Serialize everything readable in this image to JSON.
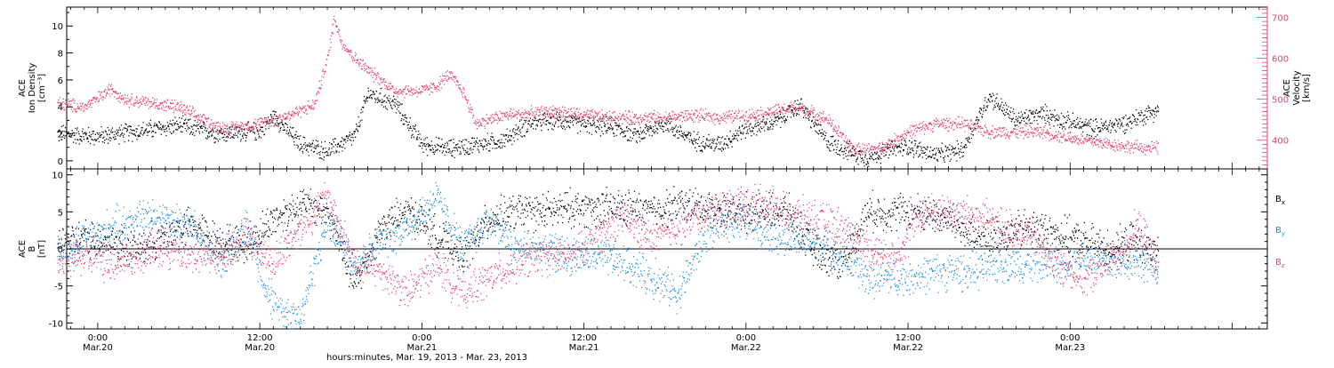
{
  "chart_data": [
    {
      "type": "scatter",
      "panel": "plasma",
      "ylabel_left": [
        "ACE",
        "Ion Density",
        "[cm⁻³]"
      ],
      "ylabel_right": [
        "ACE",
        "Velocity",
        "[km/s]"
      ],
      "ylim_left": [
        -0.6,
        11.4
      ],
      "ylim_right": [
        330,
        725
      ],
      "yticks_left": [
        "0",
        "2",
        "4",
        "6",
        "8",
        "10"
      ],
      "yticks_left_values": [
        0,
        2,
        4,
        6,
        8,
        10
      ],
      "yticks_right": [
        "400",
        "500",
        "600",
        "700"
      ],
      "yticks_right_values": [
        400,
        500,
        600,
        700
      ],
      "colors": {
        "density": "#000000",
        "velocity": "#e8416b"
      },
      "series": [
        {
          "axis": "left",
          "color": "#000000",
          "x": [
            -3,
            0,
            3,
            6,
            9,
            12,
            13,
            15,
            17,
            19,
            20,
            22,
            24,
            26,
            28,
            30,
            32,
            34,
            36,
            38,
            40,
            42,
            44,
            46,
            48,
            50,
            52,
            54,
            56,
            57,
            58,
            60,
            62,
            64,
            66,
            68,
            70,
            72,
            74,
            76,
            78.5
          ],
          "values": [
            2.0,
            1.8,
            2.2,
            2.6,
            2.0,
            2.2,
            3.3,
            1.2,
            0.7,
            1.8,
            5.0,
            4.2,
            1.2,
            0.9,
            1.2,
            1.5,
            2.8,
            3.0,
            2.7,
            2.5,
            1.9,
            2.8,
            1.5,
            1.2,
            2.4,
            2.8,
            4.1,
            1.4,
            0.5,
            0.2,
            0.6,
            1.1,
            0.4,
            0.8,
            4.8,
            3.0,
            3.5,
            2.8,
            2.4,
            2.8,
            3.8
          ],
          "spread": 0.6
        },
        {
          "axis": "right",
          "color": "#e8416b",
          "x": [
            -3,
            -1,
            1,
            2,
            4,
            6,
            9,
            10,
            12,
            14,
            16,
            17,
            17.5,
            18,
            19,
            20,
            22,
            24,
            25,
            26,
            27,
            28,
            29,
            30,
            32,
            34,
            36,
            38,
            40,
            42,
            44,
            46,
            48,
            50,
            52,
            54,
            56,
            58,
            60,
            62,
            64,
            66,
            68,
            70,
            72,
            74,
            76,
            78.5
          ],
          "values": [
            490,
            480,
            525,
            500,
            490,
            480,
            430,
            430,
            440,
            460,
            485,
            600,
            700,
            640,
            600,
            570,
            520,
            520,
            530,
            560,
            520,
            440,
            450,
            460,
            465,
            470,
            460,
            455,
            455,
            455,
            460,
            455,
            460,
            470,
            480,
            450,
            375,
            380,
            420,
            440,
            440,
            420,
            420,
            420,
            405,
            395,
            385,
            380
          ],
          "spread": 14
        }
      ]
    },
    {
      "type": "scatter",
      "panel": "magnetic-field",
      "ylabel_left": [
        "ACE",
        "B",
        "[nT]"
      ],
      "ylim": [
        -10.8,
        10.8
      ],
      "yticks": [
        "-10",
        "-5",
        "0",
        "5",
        "10"
      ],
      "yticks_values": [
        -10,
        -5,
        0,
        5,
        10
      ],
      "zero_line": true,
      "colors": {
        "Bx": "#000000",
        "By": "#1a8ee6",
        "Bz": "#e8416b"
      },
      "series": [
        {
          "name": "B",
          "name_sub": "x",
          "color": "#000000",
          "x": [
            -3,
            -1,
            1,
            3,
            5,
            7,
            9,
            11,
            13,
            15,
            17,
            19,
            21,
            23,
            25,
            27,
            29,
            31,
            33,
            35,
            37,
            39,
            41,
            43,
            45,
            47,
            49,
            51,
            53,
            55,
            57,
            59,
            61,
            63,
            65,
            67,
            69,
            71,
            73,
            75,
            77,
            78.5
          ],
          "values": [
            0.5,
            1.5,
            1.0,
            0.0,
            2.0,
            3.0,
            1.0,
            0.5,
            4.0,
            6.0,
            5.0,
            -5.0,
            3.0,
            5.0,
            2.0,
            -1.0,
            4.0,
            5.0,
            5.0,
            5.5,
            5.5,
            5.5,
            5.0,
            6.0,
            5.5,
            5.0,
            5.0,
            5.0,
            0.0,
            -2.0,
            5.0,
            5.0,
            5.0,
            4.0,
            1.0,
            2.0,
            3.0,
            2.0,
            1.0,
            0.0,
            1.0,
            -1.0
          ],
          "spread": 2.2
        },
        {
          "name": "B",
          "name_sub": "y",
          "color": "#1a8ee6",
          "x": [
            -3,
            -1,
            1,
            3,
            5,
            7,
            9,
            11,
            13,
            15,
            17,
            19,
            21,
            23,
            25,
            27,
            29,
            31,
            33,
            35,
            37,
            39,
            41,
            43,
            45,
            47,
            49,
            51,
            53,
            55,
            57,
            59,
            61,
            63,
            65,
            67,
            69,
            71,
            73,
            75,
            77,
            78.5
          ],
          "values": [
            -1.0,
            1.0,
            3.0,
            4.0,
            4.5,
            3.0,
            -2.0,
            3.0,
            -8.0,
            -9.0,
            4.0,
            -2.0,
            1.0,
            3.0,
            7.0,
            0.0,
            4.0,
            0.0,
            0.0,
            -1.0,
            -1.0,
            -2.0,
            -4.0,
            -6.0,
            2.0,
            4.0,
            3.0,
            1.0,
            1.0,
            -1.0,
            -4.0,
            -4.0,
            -3.5,
            -3.0,
            -3.0,
            -2.0,
            -2.0,
            -2.0,
            -1.0,
            -2.0,
            -1.5,
            -3.0
          ],
          "spread": 2.2
        },
        {
          "name": "B",
          "name_sub": "z",
          "color": "#e8416b",
          "x": [
            -3,
            -1,
            1,
            3,
            5,
            7,
            9,
            11,
            13,
            15,
            17,
            19,
            21,
            23,
            25,
            27,
            29,
            31,
            33,
            35,
            37,
            39,
            41,
            43,
            45,
            47,
            49,
            51,
            53,
            55,
            57,
            59,
            61,
            63,
            65,
            67,
            69,
            71,
            73,
            75,
            77,
            78.5
          ],
          "values": [
            -2.0,
            -1.0,
            -2.0,
            -1.0,
            0.0,
            -1.0,
            -1.0,
            2.0,
            -2.0,
            3.0,
            7.0,
            -2.0,
            -3.0,
            -6.0,
            -2.0,
            -6.0,
            -4.0,
            -2.0,
            -1.0,
            -1.0,
            2.0,
            4.0,
            1.0,
            3.0,
            5.0,
            6.0,
            6.0,
            5.0,
            4.0,
            3.0,
            0.0,
            -1.0,
            5.0,
            5.0,
            4.5,
            3.0,
            2.0,
            -2.0,
            -4.0,
            -2.0,
            3.0,
            -2.0
          ],
          "spread": 2.2
        }
      ]
    }
  ],
  "x_axis": {
    "xlabel": "hours:minutes, Mar. 19, 2013 - Mar. 23, 2013",
    "xlim_hours": [
      -2.3,
      86.6
    ],
    "ticks": [
      {
        "hours": 0,
        "time": "0:00",
        "date": "Mar.20"
      },
      {
        "hours": 12,
        "time": "12:00",
        "date": "Mar.20"
      },
      {
        "hours": 24,
        "time": "0:00",
        "date": "Mar.21"
      },
      {
        "hours": 36,
        "time": "12:00",
        "date": "Mar.21"
      },
      {
        "hours": 48,
        "time": "0:00",
        "date": "Mar.22"
      },
      {
        "hours": 60,
        "time": "12:00",
        "date": "Mar.22"
      },
      {
        "hours": 72,
        "time": "0:00",
        "date": "Mar.23"
      }
    ]
  }
}
